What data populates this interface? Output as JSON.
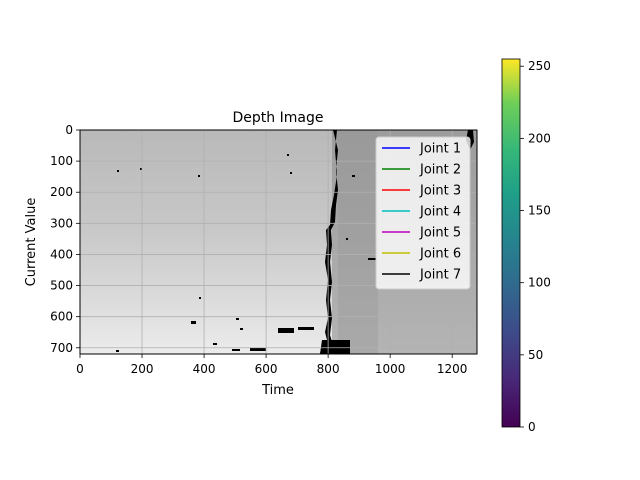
{
  "chart_data": {
    "type": "heatmap",
    "title": "Depth Image",
    "xlabel": "Time",
    "ylabel": "Current Value",
    "xlim": [
      0,
      1280
    ],
    "ylim": [
      720,
      0
    ],
    "xticks": [
      0,
      200,
      400,
      600,
      800,
      1000,
      1200
    ],
    "yticks": [
      0,
      100,
      200,
      300,
      400,
      500,
      600,
      700
    ],
    "grid": true,
    "legend": {
      "placement": "top-right",
      "entries": [
        {
          "name": "Joint 1",
          "color": "#0000ff"
        },
        {
          "name": "Joint 2",
          "color": "#008000"
        },
        {
          "name": "Joint 3",
          "color": "#ff0000"
        },
        {
          "name": "Joint 4",
          "color": "#00bfbf"
        },
        {
          "name": "Joint 5",
          "color": "#bf00bf"
        },
        {
          "name": "Joint 6",
          "color": "#bfbf00"
        },
        {
          "name": "Joint 7",
          "color": "#000000"
        }
      ]
    },
    "image": {
      "colormap": "gray",
      "boundary_x": 810,
      "left_region_level": 190,
      "right_region_level": 160
    },
    "colorbar": {
      "colormap": "viridis",
      "range": [
        0,
        255
      ],
      "ticks": [
        0,
        50,
        100,
        150,
        200,
        250
      ]
    }
  }
}
